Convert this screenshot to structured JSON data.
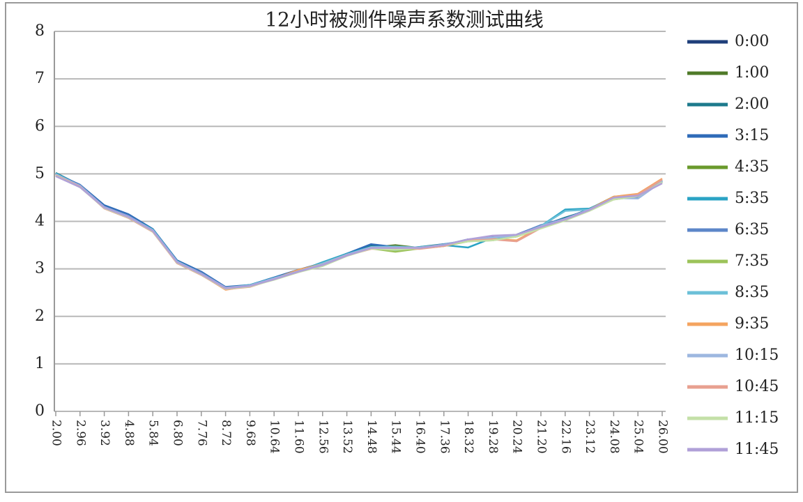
{
  "chart_data": {
    "type": "line",
    "title": "12小时被测件噪声系数测试曲线",
    "categories": [
      "2.00",
      "2.96",
      "3.92",
      "4.88",
      "5.84",
      "6.80",
      "7.76",
      "8.72",
      "9.68",
      "10.64",
      "11.60",
      "12.56",
      "13.52",
      "14.48",
      "15.44",
      "16.40",
      "17.36",
      "18.32",
      "19.28",
      "20.24",
      "21.20",
      "22.16",
      "23.12",
      "24.08",
      "25.04",
      "26.00"
    ],
    "ylim": [
      0,
      8
    ],
    "yticks": [
      0,
      1,
      2,
      3,
      4,
      5,
      6,
      7,
      8
    ],
    "grid": true,
    "legend": "right",
    "series": [
      {
        "name": "0:00",
        "color": "#1f3f7a",
        "values": [
          5.0,
          4.75,
          4.32,
          4.12,
          3.82,
          3.15,
          2.92,
          2.6,
          2.65,
          2.8,
          2.97,
          3.1,
          3.32,
          3.47,
          3.45,
          3.45,
          3.5,
          3.62,
          3.65,
          3.7,
          3.9,
          4.05,
          4.25,
          4.5,
          4.55,
          4.85
        ]
      },
      {
        "name": "1:00",
        "color": "#4f7a28",
        "values": [
          4.98,
          4.74,
          4.3,
          4.1,
          3.8,
          3.14,
          2.9,
          2.58,
          2.66,
          2.78,
          2.95,
          3.12,
          3.3,
          3.45,
          3.5,
          3.44,
          3.5,
          3.6,
          3.66,
          3.72,
          3.88,
          4.06,
          4.26,
          4.52,
          4.56,
          4.86
        ]
      },
      {
        "name": "2:00",
        "color": "#1d7a8c",
        "values": [
          5.02,
          4.76,
          4.31,
          4.11,
          3.82,
          3.16,
          2.91,
          2.61,
          2.64,
          2.8,
          2.96,
          3.1,
          3.31,
          3.5,
          3.42,
          3.46,
          3.52,
          3.58,
          3.64,
          3.7,
          3.9,
          4.08,
          4.24,
          4.48,
          4.55,
          4.84
        ]
      },
      {
        "name": "3:15",
        "color": "#2e6bb8",
        "values": [
          5.0,
          4.77,
          4.34,
          4.15,
          3.84,
          3.18,
          2.94,
          2.62,
          2.66,
          2.82,
          2.98,
          3.12,
          3.32,
          3.52,
          3.46,
          3.45,
          3.5,
          3.62,
          3.67,
          3.72,
          3.92,
          4.06,
          4.26,
          4.5,
          4.5,
          4.85
        ]
      },
      {
        "name": "4:35",
        "color": "#6a9a2c",
        "values": [
          4.96,
          4.73,
          4.28,
          4.08,
          3.8,
          3.14,
          2.88,
          2.59,
          2.63,
          2.79,
          2.94,
          3.08,
          3.29,
          3.44,
          3.46,
          3.44,
          3.49,
          3.59,
          3.62,
          3.68,
          3.86,
          4.04,
          4.24,
          4.47,
          4.54,
          4.83
        ]
      },
      {
        "name": "5:35",
        "color": "#2aa3c4",
        "values": [
          5.01,
          4.75,
          4.3,
          4.1,
          3.83,
          3.16,
          2.9,
          2.6,
          2.66,
          2.81,
          2.95,
          3.14,
          3.32,
          3.46,
          3.38,
          3.46,
          3.5,
          3.45,
          3.65,
          3.7,
          3.9,
          4.25,
          4.27,
          4.5,
          4.56,
          4.86
        ]
      },
      {
        "name": "6:35",
        "color": "#5c86c8",
        "values": [
          4.99,
          4.76,
          4.31,
          4.12,
          3.81,
          3.15,
          2.92,
          2.61,
          2.65,
          2.8,
          2.96,
          3.1,
          3.3,
          3.45,
          3.44,
          3.44,
          3.52,
          3.6,
          3.66,
          3.71,
          3.92,
          4.06,
          4.24,
          4.5,
          4.52,
          4.84
        ]
      },
      {
        "name": "7:35",
        "color": "#9cc35a",
        "values": [
          4.97,
          4.72,
          4.29,
          4.09,
          3.79,
          3.13,
          2.89,
          2.58,
          2.63,
          2.78,
          2.94,
          3.06,
          3.28,
          3.43,
          3.36,
          3.43,
          3.48,
          3.58,
          3.6,
          3.68,
          3.86,
          4.02,
          4.24,
          4.46,
          4.53,
          4.82
        ]
      },
      {
        "name": "8:35",
        "color": "#6cc0d8",
        "values": [
          5.0,
          4.74,
          4.3,
          4.1,
          3.82,
          3.16,
          2.9,
          2.6,
          2.65,
          2.8,
          2.95,
          3.12,
          3.3,
          3.46,
          3.47,
          3.45,
          3.51,
          3.61,
          3.65,
          3.7,
          3.9,
          4.22,
          4.25,
          4.5,
          4.55,
          4.85
        ]
      },
      {
        "name": "9:35",
        "color": "#f4a460",
        "values": [
          4.98,
          4.74,
          4.28,
          4.08,
          3.8,
          3.12,
          2.88,
          2.56,
          2.64,
          2.79,
          2.98,
          3.1,
          3.3,
          3.44,
          3.44,
          3.43,
          3.48,
          3.6,
          3.63,
          3.6,
          3.88,
          4.04,
          4.25,
          4.52,
          4.58,
          4.9
        ]
      },
      {
        "name": "10:15",
        "color": "#9db7e0",
        "values": [
          4.99,
          4.75,
          4.3,
          4.1,
          3.81,
          3.15,
          2.9,
          2.6,
          2.65,
          2.8,
          2.95,
          3.1,
          3.3,
          3.45,
          3.45,
          3.45,
          3.5,
          3.6,
          3.66,
          3.7,
          3.9,
          4.05,
          4.25,
          4.49,
          4.48,
          4.84
        ]
      },
      {
        "name": "10:45",
        "color": "#e8a090",
        "values": [
          4.97,
          4.73,
          4.27,
          4.07,
          3.78,
          3.12,
          2.87,
          2.57,
          2.62,
          2.78,
          2.93,
          3.08,
          3.28,
          3.42,
          3.43,
          3.42,
          3.48,
          3.6,
          3.62,
          3.58,
          3.86,
          4.04,
          4.23,
          4.5,
          4.56,
          4.88
        ]
      },
      {
        "name": "11:15",
        "color": "#c4e0a8",
        "values": [
          4.96,
          4.72,
          4.28,
          4.08,
          3.79,
          3.13,
          2.88,
          2.58,
          2.63,
          2.77,
          2.93,
          3.06,
          3.27,
          3.43,
          3.4,
          3.44,
          3.5,
          3.58,
          3.6,
          3.68,
          3.85,
          4.02,
          4.22,
          4.46,
          4.53,
          4.82
        ]
      },
      {
        "name": "11:45",
        "color": "#b0a0d8",
        "values": [
          4.95,
          4.72,
          4.29,
          4.09,
          3.8,
          3.14,
          2.89,
          2.59,
          2.64,
          2.78,
          2.94,
          3.08,
          3.28,
          3.44,
          3.44,
          3.44,
          3.5,
          3.62,
          3.7,
          3.72,
          3.88,
          4.04,
          4.24,
          4.5,
          4.54,
          4.8
        ]
      }
    ]
  }
}
